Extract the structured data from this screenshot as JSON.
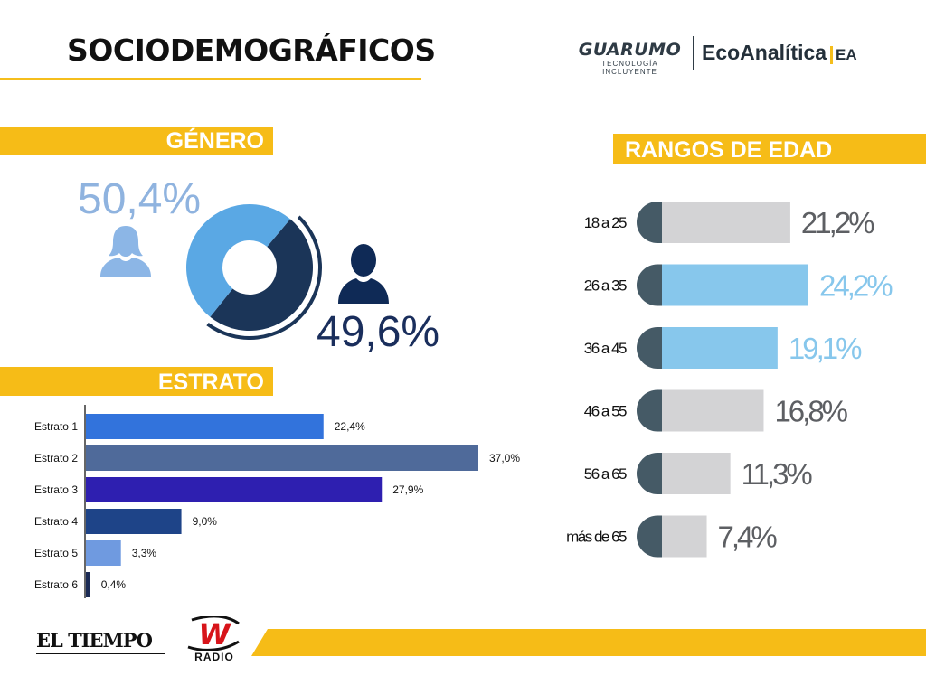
{
  "header": {
    "title": "SOCIODEMOGRÁFICOS",
    "logo_guarumo": "GUARUMO",
    "logo_guarumo_tagline": "TECNOLOGÍA INCLUYENTE",
    "logo_ecoanalitica": "EcoAnalítica",
    "logo_ea": "EA"
  },
  "footer": {
    "logo_eltiempo": "EL TIEMPO",
    "logo_w": "W",
    "logo_wradio": "RADIO"
  },
  "colors": {
    "accent_yellow": "#f6bc17",
    "female": "#5aa8e4",
    "male": "#1b3558",
    "bar_dark_cap": "#455a66",
    "bar_grey": "#d3d3d5",
    "bar_light_blue": "#87c7ec"
  },
  "icons": {
    "female": "female-user-icon",
    "male": "male-user-icon"
  },
  "chart_data": [
    {
      "type": "pie",
      "title": "GÉNERO",
      "slices": [
        {
          "label": "",
          "value": 50.4,
          "display": "50,4%",
          "icon": "female-user-icon",
          "color": "#5aa8e4"
        },
        {
          "label": "",
          "value": 49.6,
          "display": "49,6%",
          "icon": "male-user-icon",
          "color": "#1b3558"
        }
      ]
    },
    {
      "type": "bar",
      "orientation": "horizontal",
      "title": "ESTRATO",
      "categories": [
        "Estrato 1",
        "Estrato 2",
        "Estrato 3",
        "Estrato 4",
        "Estrato 5",
        "Estrato 6"
      ],
      "values": [
        22.4,
        37.0,
        27.9,
        9.0,
        3.3,
        0.4
      ],
      "value_labels": [
        "22,4%",
        "37,0%",
        "27,9%",
        "9,0%",
        "3,3%",
        "0,4%"
      ],
      "colors": [
        "#3273dc",
        "#4f6a9a",
        "#2e1fb0",
        "#1e4488",
        "#6f9ae0",
        "#1b2b55"
      ],
      "xlim": [
        0,
        37.0
      ]
    },
    {
      "type": "bar",
      "orientation": "horizontal",
      "title": "RANGOS DE EDAD",
      "categories": [
        "18 a 25",
        "26 a 35",
        "36 a 45",
        "46 a 55",
        "56 a 65",
        "más de 65"
      ],
      "values": [
        21.2,
        24.2,
        19.1,
        16.8,
        11.3,
        7.4
      ],
      "value_labels": [
        "21,2%",
        "24,2%",
        "19,1%",
        "16,8%",
        "11,3%",
        "7,4%"
      ],
      "highlighted": [
        false,
        true,
        true,
        false,
        false,
        false
      ],
      "xlim": [
        0,
        24.2
      ]
    }
  ]
}
